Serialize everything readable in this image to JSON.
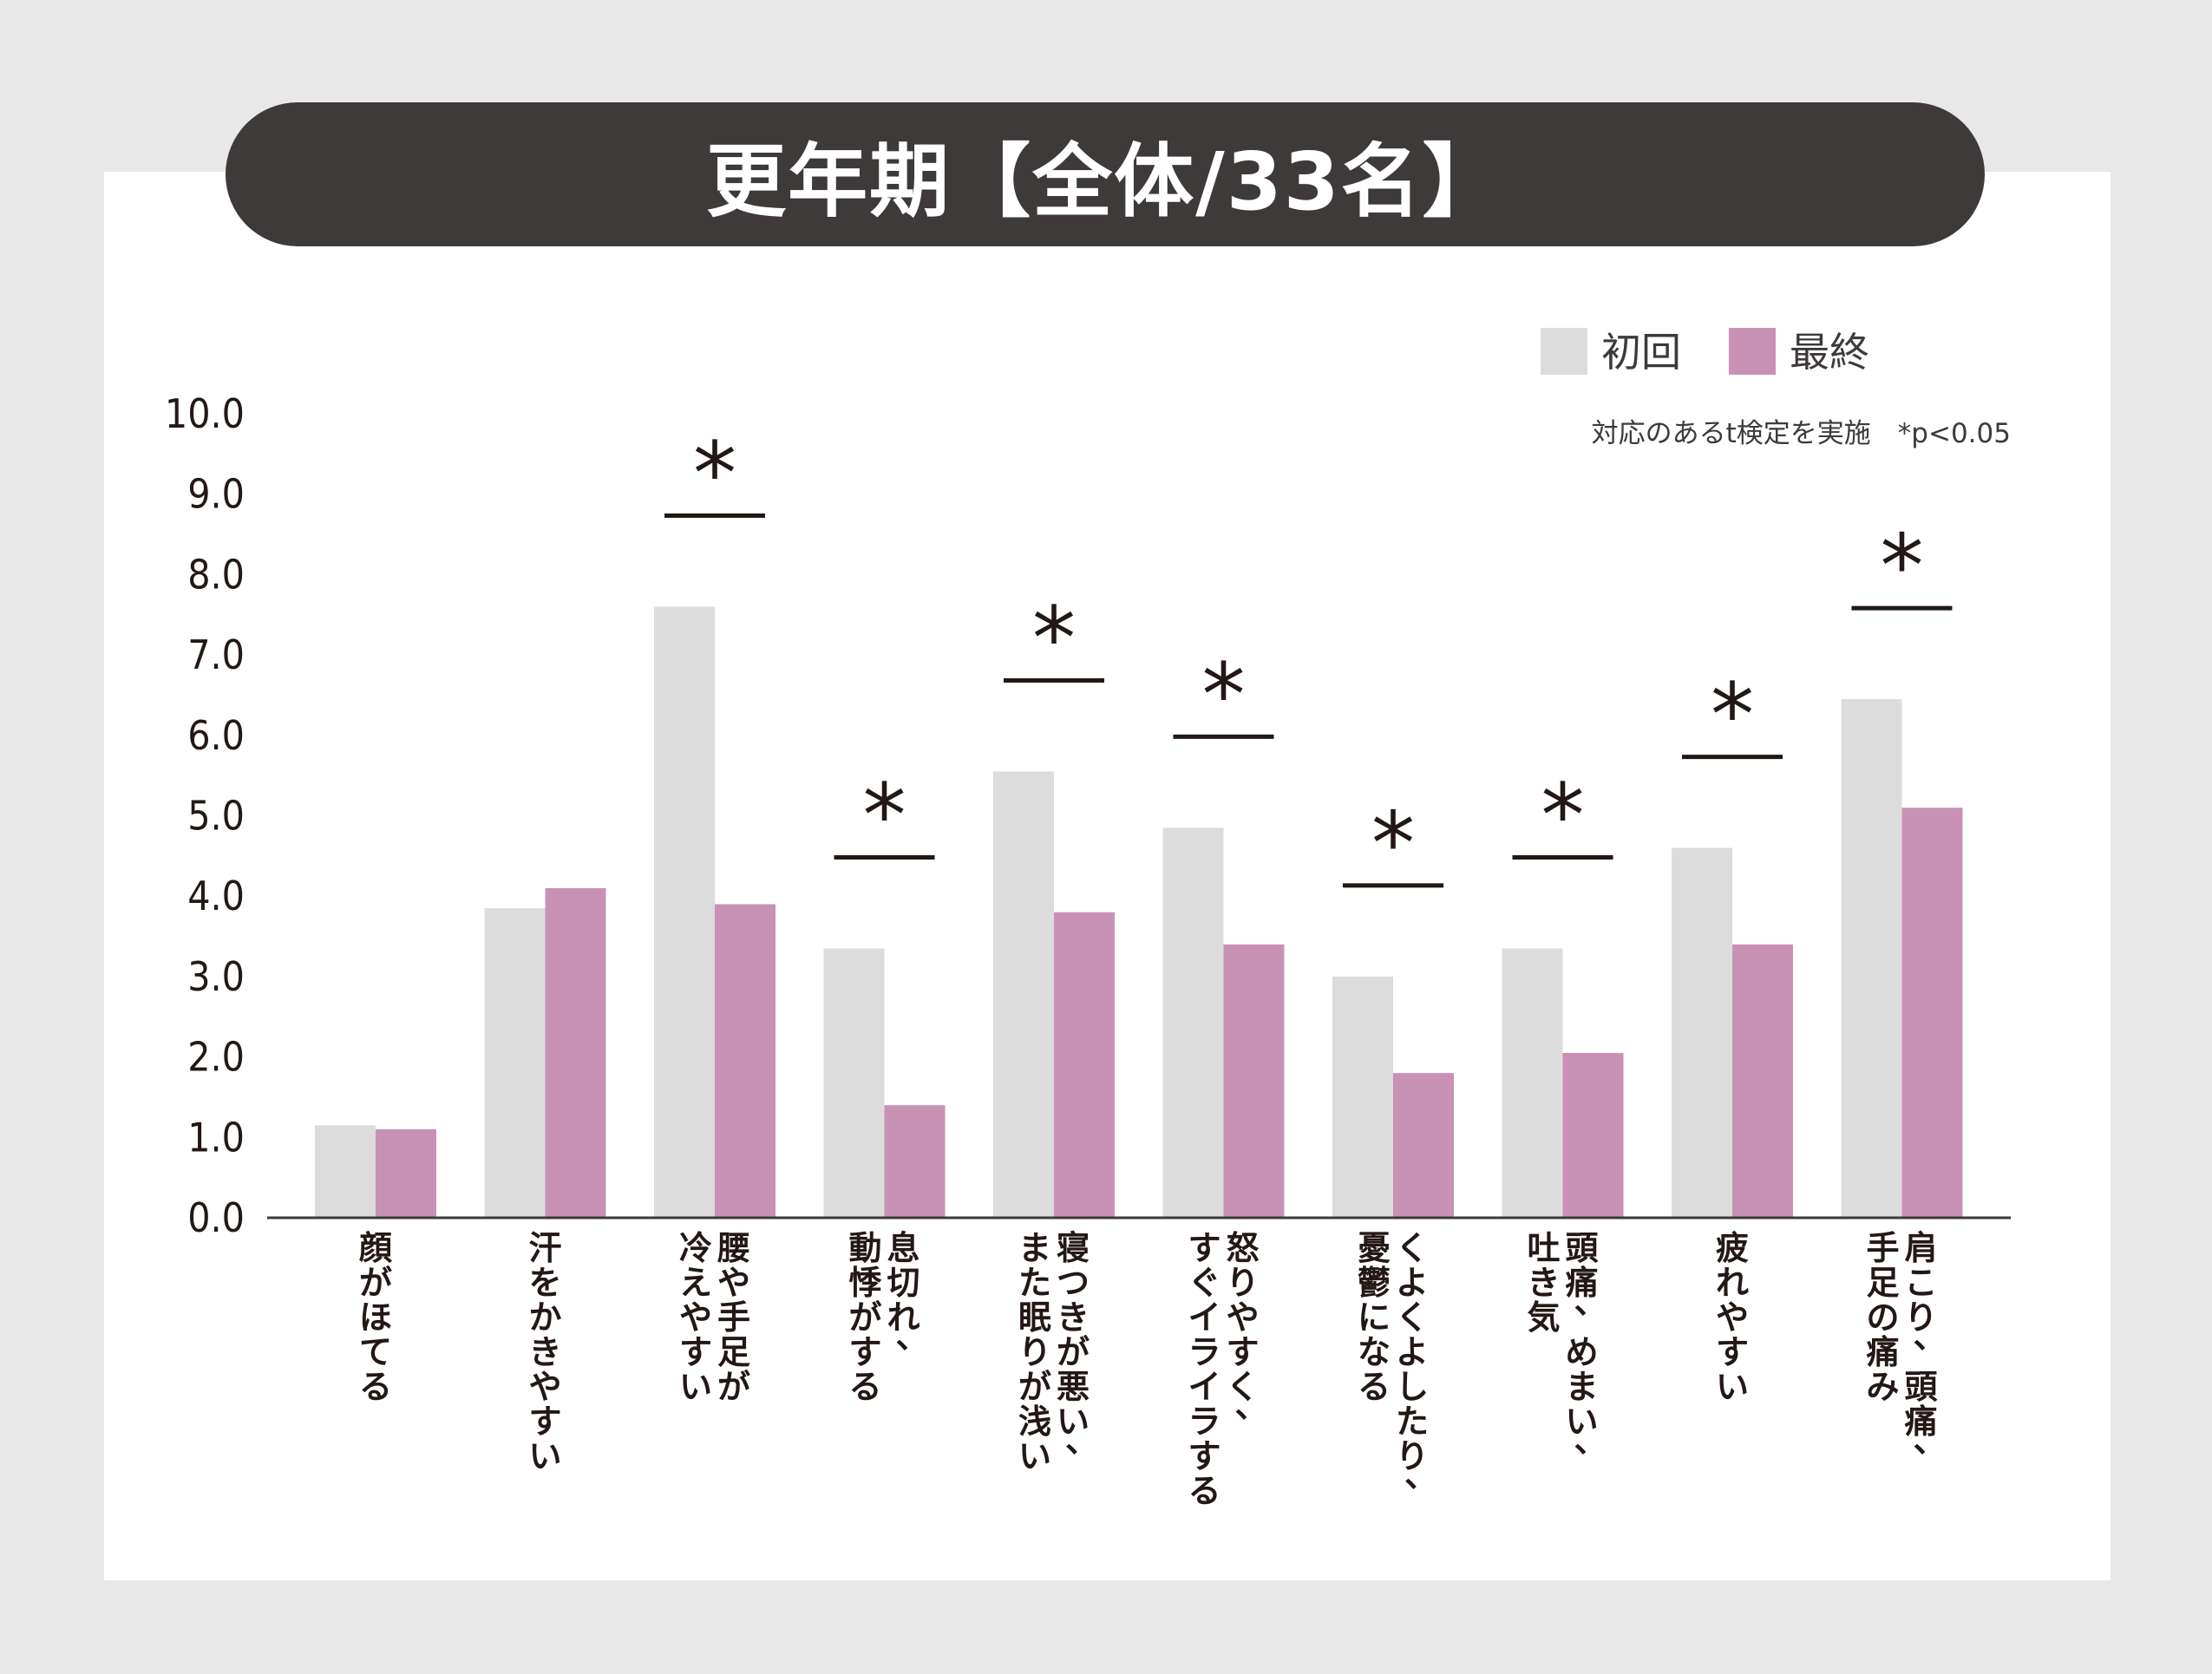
{
  "title": "更年期【全体/33名】",
  "legend": {
    "initial": "初回",
    "final": "最終"
  },
  "note": "対応のあるt検定を実施　*p<0.05",
  "significance_mark": "*",
  "colors": {
    "initial": "#dcdcdc",
    "final": "#c992b5",
    "title_bg": "#3d3a39",
    "text": "#231815"
  },
  "chart_data": {
    "type": "bar",
    "categories": [
      "顔がほてる",
      "汗をかきやすい",
      "腰や手足が\n冷えやすい",
      "息切れ、\n動悸がする",
      "寝つきが悪い、\nまた眠りが浅い",
      "怒りやすく、\nすぐイライラする",
      "くよくよしたり、\n憂鬱になる",
      "頭痛、めまい、\n吐き気",
      "疲れやすい",
      "肩こり、頭痛、\n手足の痛み"
    ],
    "series": [
      {
        "name": "初回",
        "values": [
          1.15,
          3.85,
          7.6,
          3.35,
          5.55,
          4.85,
          3.0,
          3.35,
          4.6,
          6.45
        ]
      },
      {
        "name": "最終",
        "values": [
          1.1,
          4.1,
          3.9,
          1.4,
          3.8,
          3.4,
          1.8,
          2.05,
          3.4,
          5.1
        ]
      }
    ],
    "significant": [
      false,
      false,
      true,
      true,
      true,
      true,
      true,
      true,
      true,
      true
    ],
    "yticks": [
      "0.0",
      "1.0",
      "2.0",
      "3.0",
      "4.0",
      "5.0",
      "6.0",
      "7.0",
      "8.0",
      "9.0",
      "10.0"
    ],
    "ylim": [
      0,
      10
    ],
    "xlabel": "",
    "ylabel": "",
    "legend_position": "top-right",
    "grid": false
  }
}
